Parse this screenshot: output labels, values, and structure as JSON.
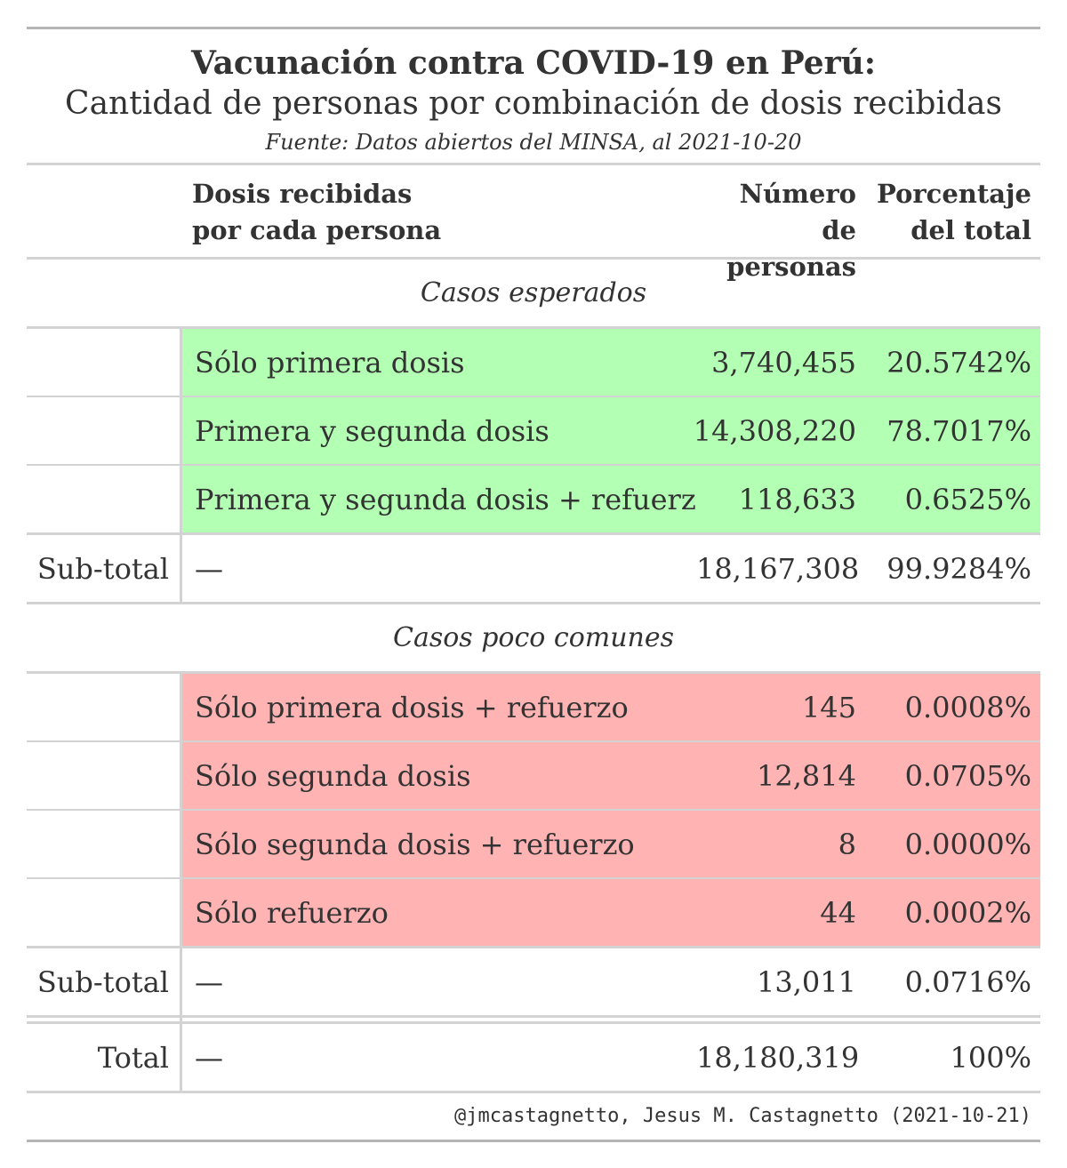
{
  "chart_data": {
    "type": "table",
    "title": "Vacunación contra COVID-19 en Perú:",
    "subtitle": "Cantidad de personas por combinación de dosis recibidas",
    "source": "Fuente: Datos abiertos del MINSA, al 2021-10-20",
    "columns": {
      "dose": [
        "Dosis recibidas",
        "por cada persona"
      ],
      "count": [
        "Número de",
        "personas"
      ],
      "percent": [
        "Porcentaje",
        "del total"
      ]
    },
    "groups": [
      {
        "label": "Casos esperados",
        "color": "#b3ffb3",
        "rows": [
          {
            "dose": "Sólo primera dosis",
            "count": "3,740,455",
            "percent": "20.5742%"
          },
          {
            "dose": "Primera y segunda dosis",
            "count": "14,308,220",
            "percent": "78.7017%"
          },
          {
            "dose": "Primera y segunda dosis + refuerzo",
            "count": "118,633",
            "percent": "0.6525%"
          }
        ],
        "subtotal": {
          "label": "Sub-total",
          "dose": "—",
          "count": "18,167,308",
          "percent": "99.9284%"
        }
      },
      {
        "label": "Casos poco comunes",
        "color": "#ffb3b3",
        "rows": [
          {
            "dose": "Sólo primera dosis + refuerzo",
            "count": "145",
            "percent": "0.0008%"
          },
          {
            "dose": "Sólo segunda dosis",
            "count": "12,814",
            "percent": "0.0705%"
          },
          {
            "dose": "Sólo segunda dosis + refuerzo",
            "count": "8",
            "percent": "0.0000%"
          },
          {
            "dose": "Sólo refuerzo",
            "count": "44",
            "percent": "0.0002%"
          }
        ],
        "subtotal": {
          "label": "Sub-total",
          "dose": "—",
          "count": "13,011",
          "percent": "0.0716%"
        }
      }
    ],
    "total": {
      "label": "Total",
      "dose": "—",
      "count": "18,180,319",
      "percent": "100%"
    },
    "footer": "@jmcastagnetto, Jesus M. Castagnetto (2021-10-21)"
  }
}
